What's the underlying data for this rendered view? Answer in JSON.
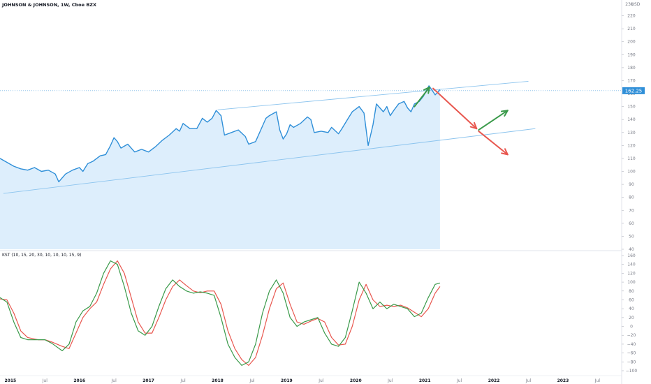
{
  "header": {
    "title": "JOHNSON & JOHNSON, 1W, Cboe BZX",
    "currency": "USD"
  },
  "price_panel": {
    "current_price_label": "162.25",
    "ylim": [
      40,
      230
    ],
    "y_ticks": [
      40,
      50,
      60,
      70,
      80,
      90,
      100,
      110,
      120,
      130,
      140,
      150,
      160,
      170,
      180,
      190,
      200,
      210,
      220,
      230
    ],
    "line_color": "#2f8fd8",
    "fill_color": "#d7ebfb",
    "channel_color": "#8cc4ee",
    "channel_upper": [
      [
        2018.0,
        147.5
      ],
      [
        2022.5,
        169.5
      ]
    ],
    "channel_lower": [
      [
        2014.9,
        83.0
      ],
      [
        2022.6,
        133.0
      ]
    ],
    "arrows": [
      {
        "color": "#3a9a4a",
        "from": [
          2020.85,
          150
        ],
        "to": [
          2021.07,
          165
        ]
      },
      {
        "color": "#e8574f",
        "from": [
          2021.12,
          164
        ],
        "to": [
          2021.75,
          133
        ]
      },
      {
        "color": "#3a9a4a",
        "from": [
          2021.78,
          132
        ],
        "to": [
          2022.2,
          147
        ]
      },
      {
        "color": "#e8574f",
        "from": [
          2021.78,
          131
        ],
        "to": [
          2022.2,
          113
        ]
      }
    ]
  },
  "kst_panel": {
    "label": "KST (10, 15, 20, 30, 10, 10, 10, 15, 9)",
    "ylim": [
      -100,
      160
    ],
    "y_ticks": [
      -100,
      -80,
      -60,
      -40,
      -20,
      0,
      20,
      40,
      60,
      80,
      100,
      120,
      140,
      160
    ],
    "kst_color": "#3a9a4a",
    "signal_color": "#e8574f"
  },
  "x_axis": {
    "labels": [
      {
        "text": "2015",
        "x": 2015.0
      },
      {
        "text": "Jul",
        "x": 2015.5
      },
      {
        "text": "2016",
        "x": 2016.0
      },
      {
        "text": "Jul",
        "x": 2016.5
      },
      {
        "text": "2017",
        "x": 2017.0
      },
      {
        "text": "Jul",
        "x": 2017.5
      },
      {
        "text": "2018",
        "x": 2018.0
      },
      {
        "text": "Jul",
        "x": 2018.5
      },
      {
        "text": "2019",
        "x": 2019.0
      },
      {
        "text": "Jul",
        "x": 2019.5
      },
      {
        "text": "2020",
        "x": 2020.0
      },
      {
        "text": "Jul",
        "x": 2020.5
      },
      {
        "text": "2021",
        "x": 2021.0
      },
      {
        "text": "Jul",
        "x": 2021.5
      },
      {
        "text": "2022",
        "x": 2022.0
      },
      {
        "text": "Jul",
        "x": 2022.5
      },
      {
        "text": "2023",
        "x": 2023.0
      },
      {
        "text": "Jul",
        "x": 2023.5
      }
    ]
  },
  "chart_data": [
    {
      "type": "area",
      "title": "JOHNSON & JOHNSON, 1W, Cboe BZX",
      "ylabel": "USD",
      "xlim": [
        2014.85,
        2023.85
      ],
      "ylim": [
        40,
        230
      ],
      "series": [
        {
          "name": "JOHNSON & JOHNSON",
          "points": [
            [
              2014.85,
              110
            ],
            [
              2014.95,
              107
            ],
            [
              2015.05,
              104
            ],
            [
              2015.15,
              102
            ],
            [
              2015.25,
              101
            ],
            [
              2015.35,
              103
            ],
            [
              2015.45,
              100
            ],
            [
              2015.55,
              101
            ],
            [
              2015.65,
              98
            ],
            [
              2015.7,
              92
            ],
            [
              2015.8,
              98
            ],
            [
              2015.9,
              101
            ],
            [
              2016.0,
              103
            ],
            [
              2016.05,
              100
            ],
            [
              2016.12,
              106
            ],
            [
              2016.2,
              108
            ],
            [
              2016.3,
              112
            ],
            [
              2016.38,
              113
            ],
            [
              2016.45,
              120
            ],
            [
              2016.5,
              126
            ],
            [
              2016.55,
              123
            ],
            [
              2016.6,
              118
            ],
            [
              2016.7,
              121
            ],
            [
              2016.8,
              115
            ],
            [
              2016.9,
              117
            ],
            [
              2017.0,
              115
            ],
            [
              2017.1,
              119
            ],
            [
              2017.2,
              124
            ],
            [
              2017.3,
              128
            ],
            [
              2017.4,
              133
            ],
            [
              2017.45,
              131
            ],
            [
              2017.5,
              137
            ],
            [
              2017.6,
              133
            ],
            [
              2017.7,
              133
            ],
            [
              2017.78,
              141
            ],
            [
              2017.85,
              138
            ],
            [
              2017.92,
              141
            ],
            [
              2017.98,
              147
            ],
            [
              2018.05,
              143
            ],
            [
              2018.1,
              128
            ],
            [
              2018.2,
              130
            ],
            [
              2018.3,
              132
            ],
            [
              2018.4,
              127
            ],
            [
              2018.45,
              121
            ],
            [
              2018.55,
              123
            ],
            [
              2018.65,
              135
            ],
            [
              2018.7,
              141
            ],
            [
              2018.75,
              143
            ],
            [
              2018.85,
              146
            ],
            [
              2018.9,
              132
            ],
            [
              2018.95,
              125
            ],
            [
              2019.0,
              129
            ],
            [
              2019.05,
              136
            ],
            [
              2019.1,
              134
            ],
            [
              2019.2,
              137
            ],
            [
              2019.3,
              142
            ],
            [
              2019.35,
              140
            ],
            [
              2019.4,
              130
            ],
            [
              2019.5,
              131
            ],
            [
              2019.6,
              130
            ],
            [
              2019.65,
              134
            ],
            [
              2019.75,
              129
            ],
            [
              2019.8,
              133
            ],
            [
              2019.88,
              140
            ],
            [
              2019.95,
              146
            ],
            [
              2020.0,
              148
            ],
            [
              2020.05,
              150
            ],
            [
              2020.12,
              145
            ],
            [
              2020.18,
              120
            ],
            [
              2020.25,
              136
            ],
            [
              2020.3,
              152
            ],
            [
              2020.4,
              146
            ],
            [
              2020.45,
              150
            ],
            [
              2020.5,
              143
            ],
            [
              2020.55,
              147
            ],
            [
              2020.62,
              152
            ],
            [
              2020.7,
              154
            ],
            [
              2020.75,
              149
            ],
            [
              2020.8,
              146
            ],
            [
              2020.85,
              152
            ],
            [
              2020.92,
              154
            ],
            [
              2020.98,
              158
            ],
            [
              2021.02,
              162
            ],
            [
              2021.06,
              166
            ],
            [
              2021.1,
              163
            ],
            [
              2021.15,
              159
            ],
            [
              2021.22,
              163
            ]
          ]
        }
      ]
    },
    {
      "type": "line",
      "title": "KST (10, 15, 20, 30, 10, 10, 10, 15, 9)",
      "xlim": [
        2014.85,
        2023.85
      ],
      "ylim": [
        -100,
        160
      ],
      "series": [
        {
          "name": "KST",
          "points": [
            [
              2014.85,
              65
            ],
            [
              2014.95,
              55
            ],
            [
              2015.05,
              10
            ],
            [
              2015.15,
              -25
            ],
            [
              2015.25,
              -30
            ],
            [
              2015.4,
              -30
            ],
            [
              2015.5,
              -30
            ],
            [
              2015.6,
              -38
            ],
            [
              2015.75,
              -55
            ],
            [
              2015.85,
              -40
            ],
            [
              2015.95,
              10
            ],
            [
              2016.05,
              35
            ],
            [
              2016.15,
              45
            ],
            [
              2016.25,
              75
            ],
            [
              2016.35,
              120
            ],
            [
              2016.45,
              148
            ],
            [
              2016.55,
              140
            ],
            [
              2016.65,
              90
            ],
            [
              2016.75,
              30
            ],
            [
              2016.85,
              -10
            ],
            [
              2016.95,
              -20
            ],
            [
              2017.05,
              0
            ],
            [
              2017.15,
              45
            ],
            [
              2017.25,
              85
            ],
            [
              2017.35,
              105
            ],
            [
              2017.45,
              90
            ],
            [
              2017.55,
              80
            ],
            [
              2017.65,
              75
            ],
            [
              2017.75,
              78
            ],
            [
              2017.85,
              75
            ],
            [
              2017.95,
              70
            ],
            [
              2018.05,
              20
            ],
            [
              2018.15,
              -40
            ],
            [
              2018.25,
              -70
            ],
            [
              2018.35,
              -88
            ],
            [
              2018.45,
              -80
            ],
            [
              2018.55,
              -40
            ],
            [
              2018.65,
              30
            ],
            [
              2018.75,
              80
            ],
            [
              2018.85,
              105
            ],
            [
              2018.95,
              75
            ],
            [
              2019.05,
              20
            ],
            [
              2019.15,
              0
            ],
            [
              2019.25,
              10
            ],
            [
              2019.35,
              15
            ],
            [
              2019.45,
              20
            ],
            [
              2019.55,
              -15
            ],
            [
              2019.65,
              -40
            ],
            [
              2019.75,
              -45
            ],
            [
              2019.85,
              -25
            ],
            [
              2019.95,
              35
            ],
            [
              2020.05,
              100
            ],
            [
              2020.15,
              75
            ],
            [
              2020.25,
              40
            ],
            [
              2020.35,
              55
            ],
            [
              2020.45,
              40
            ],
            [
              2020.55,
              50
            ],
            [
              2020.65,
              45
            ],
            [
              2020.75,
              40
            ],
            [
              2020.85,
              22
            ],
            [
              2020.95,
              30
            ],
            [
              2021.05,
              65
            ],
            [
              2021.15,
              95
            ],
            [
              2021.22,
              98
            ]
          ]
        },
        {
          "name": "Signal",
          "points": [
            [
              2014.85,
              62
            ],
            [
              2014.95,
              60
            ],
            [
              2015.05,
              30
            ],
            [
              2015.15,
              -10
            ],
            [
              2015.25,
              -25
            ],
            [
              2015.4,
              -30
            ],
            [
              2015.5,
              -30
            ],
            [
              2015.6,
              -35
            ],
            [
              2015.75,
              -45
            ],
            [
              2015.85,
              -50
            ],
            [
              2015.95,
              -15
            ],
            [
              2016.05,
              20
            ],
            [
              2016.15,
              40
            ],
            [
              2016.25,
              55
            ],
            [
              2016.35,
              95
            ],
            [
              2016.45,
              130
            ],
            [
              2016.55,
              148
            ],
            [
              2016.65,
              120
            ],
            [
              2016.75,
              65
            ],
            [
              2016.85,
              10
            ],
            [
              2016.95,
              -15
            ],
            [
              2017.05,
              -15
            ],
            [
              2017.15,
              20
            ],
            [
              2017.25,
              60
            ],
            [
              2017.35,
              90
            ],
            [
              2017.45,
              105
            ],
            [
              2017.55,
              92
            ],
            [
              2017.65,
              80
            ],
            [
              2017.75,
              76
            ],
            [
              2017.85,
              80
            ],
            [
              2017.95,
              80
            ],
            [
              2018.05,
              50
            ],
            [
              2018.15,
              -10
            ],
            [
              2018.25,
              -50
            ],
            [
              2018.35,
              -75
            ],
            [
              2018.45,
              -88
            ],
            [
              2018.55,
              -70
            ],
            [
              2018.65,
              -20
            ],
            [
              2018.75,
              40
            ],
            [
              2018.85,
              85
            ],
            [
              2018.95,
              98
            ],
            [
              2019.05,
              50
            ],
            [
              2019.15,
              10
            ],
            [
              2019.25,
              5
            ],
            [
              2019.35,
              12
            ],
            [
              2019.45,
              18
            ],
            [
              2019.55,
              10
            ],
            [
              2019.65,
              -25
            ],
            [
              2019.75,
              -42
            ],
            [
              2019.85,
              -40
            ],
            [
              2019.95,
              0
            ],
            [
              2020.05,
              60
            ],
            [
              2020.15,
              95
            ],
            [
              2020.25,
              60
            ],
            [
              2020.35,
              45
            ],
            [
              2020.45,
              48
            ],
            [
              2020.55,
              45
            ],
            [
              2020.65,
              48
            ],
            [
              2020.75,
              42
            ],
            [
              2020.85,
              32
            ],
            [
              2020.95,
              22
            ],
            [
              2021.05,
              40
            ],
            [
              2021.15,
              75
            ],
            [
              2021.22,
              90
            ]
          ]
        }
      ]
    }
  ]
}
